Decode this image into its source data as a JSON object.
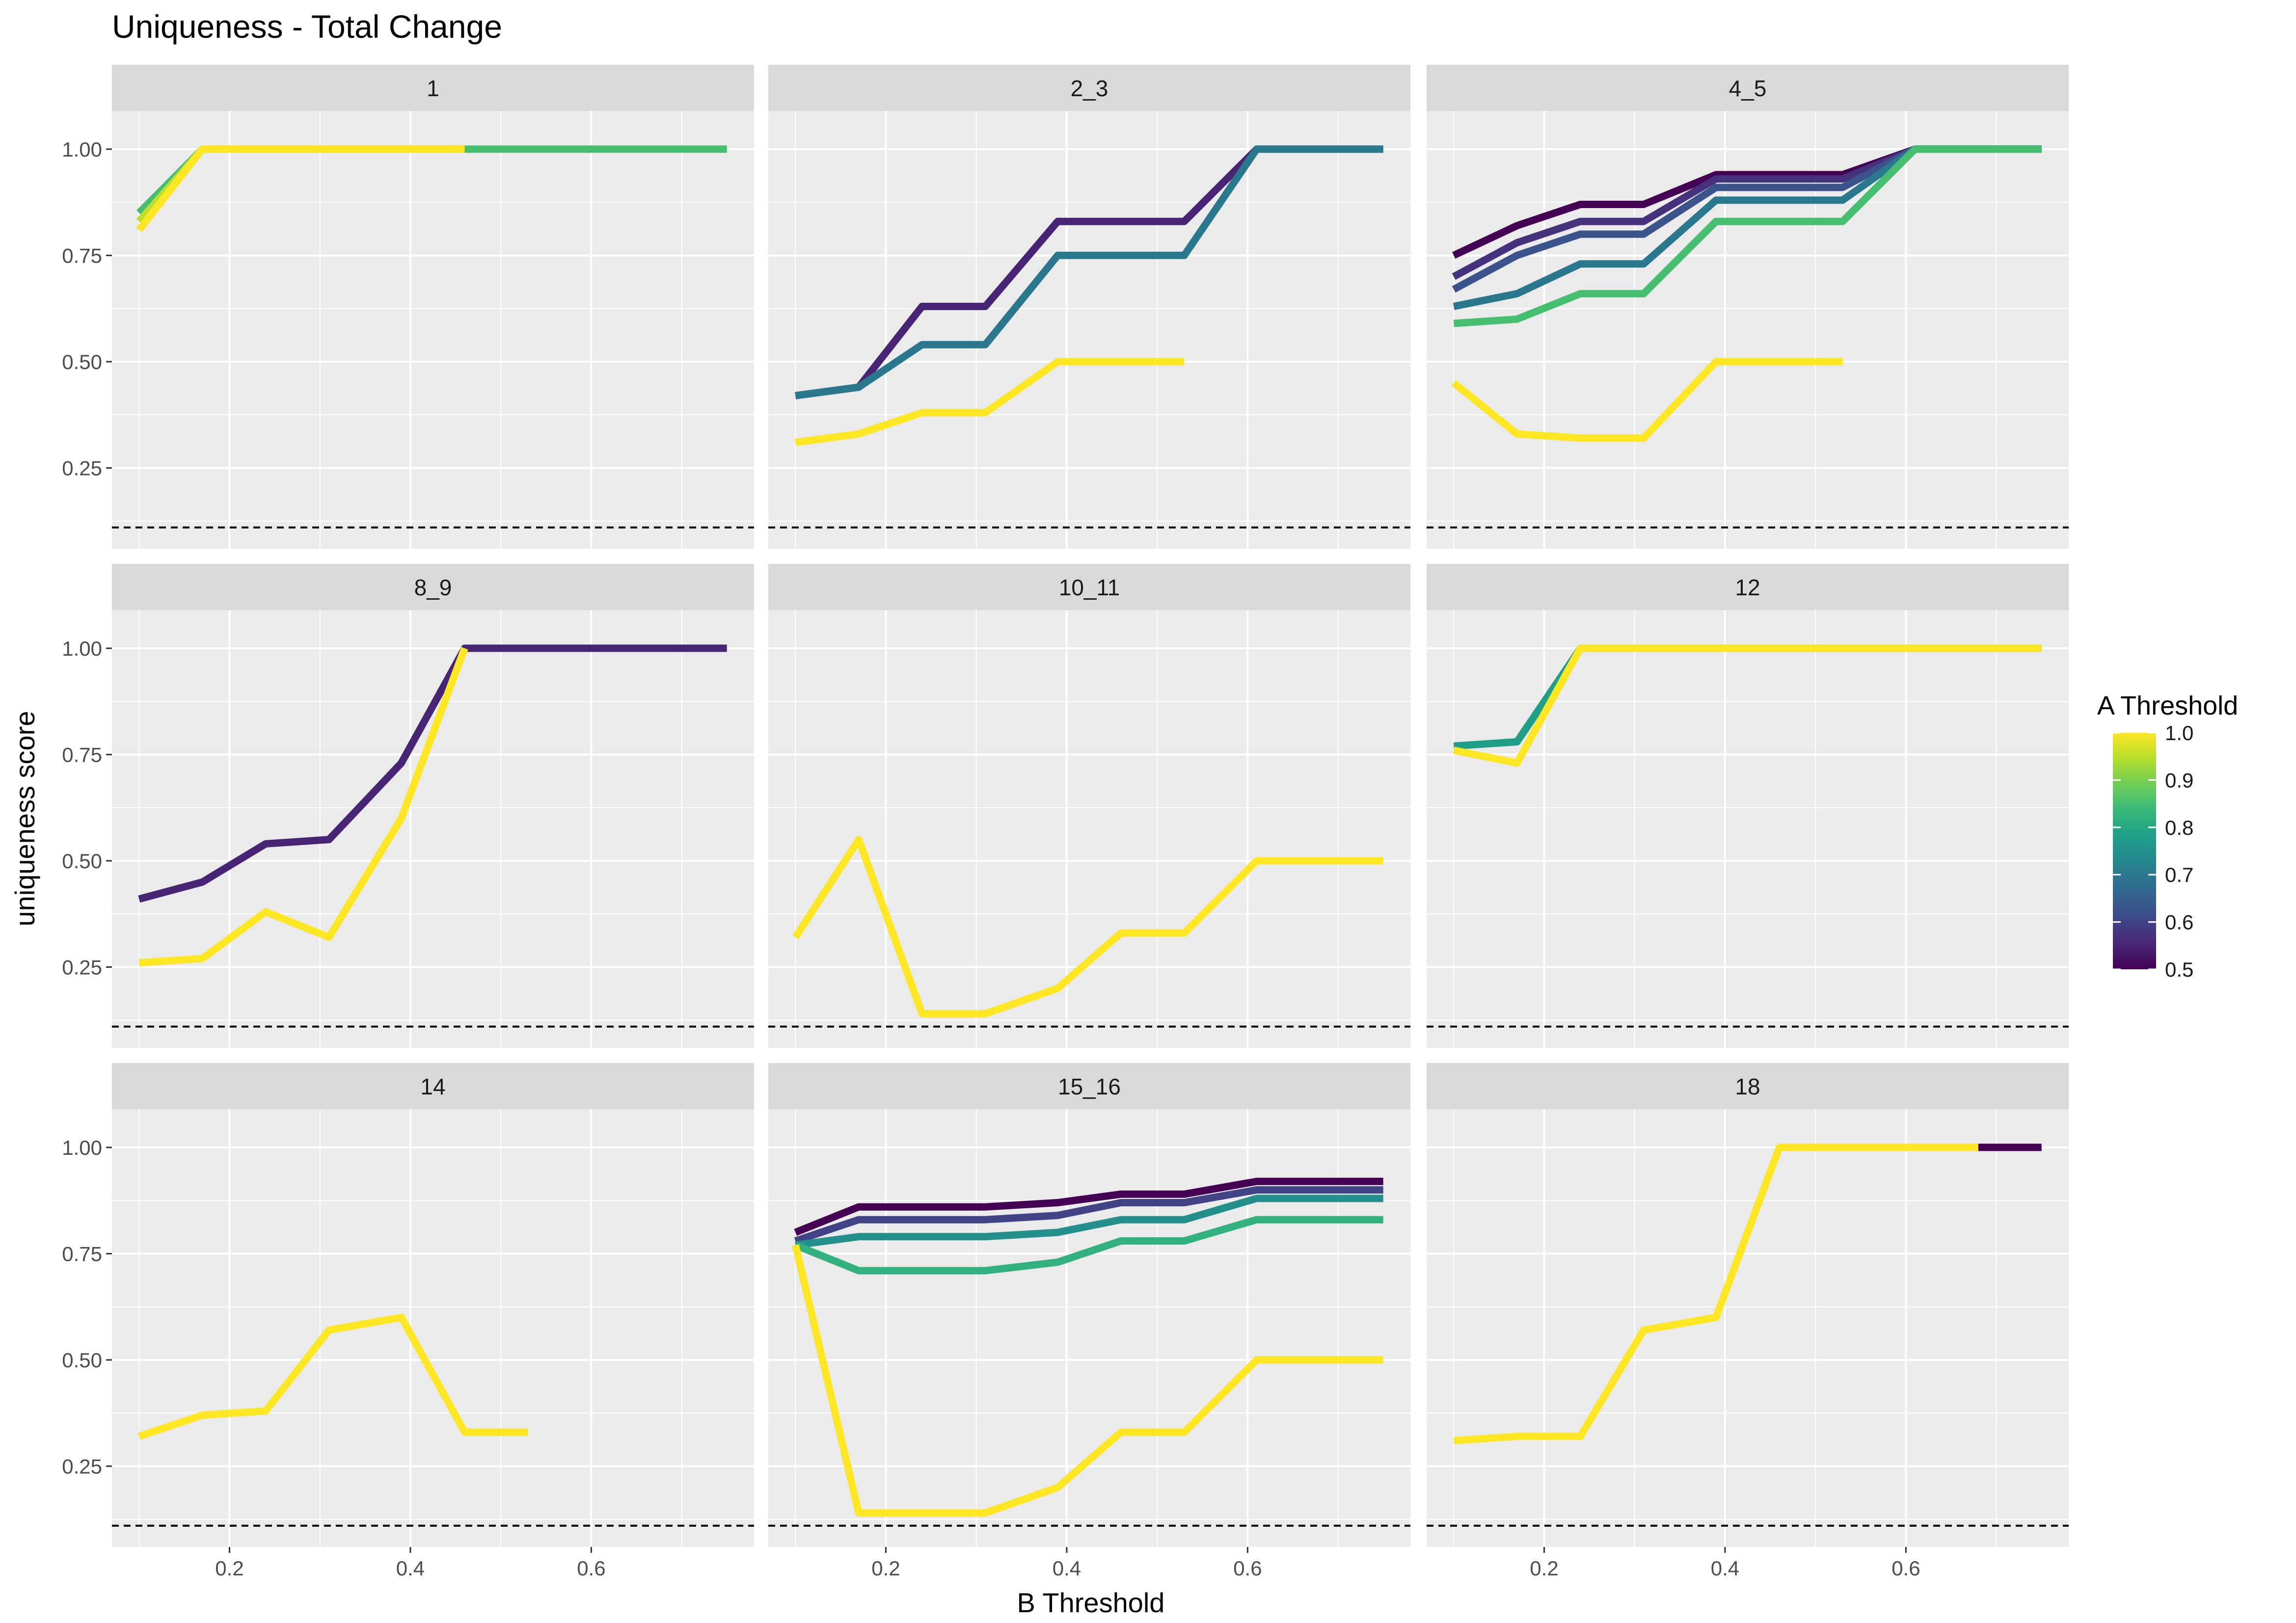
{
  "chart_data": {
    "type": "line",
    "title": "Uniqueness - Total Change",
    "xlabel": "B Threshold",
    "ylabel": "uniqueness score",
    "xlim": [
      0.07,
      0.78
    ],
    "ylim": [
      0.06,
      1.09
    ],
    "x_ticks": [
      0.2,
      0.4,
      0.6
    ],
    "x_tick_labels": [
      "0.2",
      "0.4",
      "0.6"
    ],
    "y_ticks": [
      0.25,
      0.5,
      0.75,
      1.0
    ],
    "y_tick_labels": [
      "0.25",
      "0.50",
      "0.75",
      "1.00"
    ],
    "reference_line_y": 0.11,
    "grid": true,
    "legend": {
      "title": "A Threshold",
      "placement": "right",
      "range": [
        0.5,
        1.0
      ],
      "tick_labels": [
        "1.0",
        "0.9",
        "0.8",
        "0.7",
        "0.6",
        "0.5"
      ],
      "tick_values": [
        1.0,
        0.9,
        0.8,
        0.7,
        0.6,
        0.5
      ]
    },
    "colors": {
      "panel_bg": "#EBEBEB",
      "strip_bg": "#D9D9D9",
      "grid": "#FFFFFF",
      "text": "#1A1A1A",
      "axis_text": "#4D4D4D",
      "ref_line": "#000000"
    },
    "panels": [
      {
        "label": "1",
        "series": [
          {
            "a": 0.85,
            "x": [
              0.1,
              0.17,
              0.24,
              0.31,
              0.39,
              0.46,
              0.53,
              0.61,
              0.68,
              0.75
            ],
            "y": [
              0.85,
              1.0,
              1.0,
              1.0,
              1.0,
              1.0,
              1.0,
              1.0,
              1.0,
              1.0
            ]
          },
          {
            "a": 0.95,
            "x": [
              0.1,
              0.17,
              0.24,
              0.31,
              0.39,
              0.46
            ],
            "y": [
              0.83,
              1.0,
              1.0,
              1.0,
              1.0,
              1.0
            ]
          },
          {
            "a": 1.0,
            "x": [
              0.1,
              0.17,
              0.24,
              0.31,
              0.39,
              0.46
            ],
            "y": [
              0.81,
              1.0,
              1.0,
              1.0,
              1.0,
              1.0
            ]
          }
        ]
      },
      {
        "label": "2_3",
        "series": [
          {
            "a": 0.55,
            "x": [
              0.1,
              0.17,
              0.24,
              0.31,
              0.39,
              0.46,
              0.53,
              0.61,
              0.68,
              0.75
            ],
            "y": [
              0.42,
              0.44,
              0.63,
              0.63,
              0.83,
              0.83,
              0.83,
              1.0,
              1.0,
              1.0
            ]
          },
          {
            "a": 0.7,
            "x": [
              0.1,
              0.17,
              0.24,
              0.31,
              0.39,
              0.46,
              0.53,
              0.61,
              0.68,
              0.75
            ],
            "y": [
              0.42,
              0.44,
              0.54,
              0.54,
              0.75,
              0.75,
              0.75,
              1.0,
              1.0,
              1.0
            ]
          },
          {
            "a": 1.0,
            "x": [
              0.1,
              0.17,
              0.24,
              0.31,
              0.39,
              0.46,
              0.53
            ],
            "y": [
              0.31,
              0.33,
              0.38,
              0.38,
              0.5,
              0.5,
              0.5
            ]
          }
        ]
      },
      {
        "label": "4_5",
        "series": [
          {
            "a": 0.5,
            "x": [
              0.1,
              0.17,
              0.24,
              0.31,
              0.39,
              0.46,
              0.53,
              0.61,
              0.68,
              0.75
            ],
            "y": [
              0.75,
              0.82,
              0.87,
              0.87,
              0.94,
              0.94,
              0.94,
              1.0,
              1.0,
              1.0
            ]
          },
          {
            "a": 0.57,
            "x": [
              0.1,
              0.17,
              0.24,
              0.31,
              0.39,
              0.46,
              0.53,
              0.61,
              0.68,
              0.75
            ],
            "y": [
              0.7,
              0.78,
              0.83,
              0.83,
              0.93,
              0.93,
              0.93,
              1.0,
              1.0,
              1.0
            ]
          },
          {
            "a": 0.63,
            "x": [
              0.1,
              0.17,
              0.24,
              0.31,
              0.39,
              0.46,
              0.53,
              0.61,
              0.68,
              0.75
            ],
            "y": [
              0.67,
              0.75,
              0.8,
              0.8,
              0.91,
              0.91,
              0.91,
              1.0,
              1.0,
              1.0
            ]
          },
          {
            "a": 0.7,
            "x": [
              0.1,
              0.17,
              0.24,
              0.31,
              0.39,
              0.46,
              0.53,
              0.61,
              0.68,
              0.75
            ],
            "y": [
              0.63,
              0.66,
              0.73,
              0.73,
              0.88,
              0.88,
              0.88,
              1.0,
              1.0,
              1.0
            ]
          },
          {
            "a": 0.85,
            "x": [
              0.1,
              0.17,
              0.24,
              0.31,
              0.39,
              0.46,
              0.53,
              0.61,
              0.68,
              0.75
            ],
            "y": [
              0.59,
              0.6,
              0.66,
              0.66,
              0.83,
              0.83,
              0.83,
              1.0,
              1.0,
              1.0
            ]
          },
          {
            "a": 1.0,
            "x": [
              0.1,
              0.17,
              0.24,
              0.31,
              0.39,
              0.46,
              0.53
            ],
            "y": [
              0.45,
              0.33,
              0.32,
              0.32,
              0.5,
              0.5,
              0.5
            ]
          }
        ]
      },
      {
        "label": "8_9",
        "series": [
          {
            "a": 0.55,
            "x": [
              0.1,
              0.17,
              0.24,
              0.31,
              0.39,
              0.46,
              0.53,
              0.61,
              0.68,
              0.75
            ],
            "y": [
              0.41,
              0.45,
              0.54,
              0.55,
              0.73,
              1.0,
              1.0,
              1.0,
              1.0,
              1.0
            ]
          },
          {
            "a": 1.0,
            "x": [
              0.1,
              0.17,
              0.24,
              0.31,
              0.39,
              0.46
            ],
            "y": [
              0.26,
              0.27,
              0.38,
              0.32,
              0.6,
              1.0
            ]
          }
        ]
      },
      {
        "label": "10_11",
        "series": [
          {
            "a": 1.0,
            "x": [
              0.1,
              0.17,
              0.24,
              0.31,
              0.39,
              0.46,
              0.53,
              0.61,
              0.68,
              0.75
            ],
            "y": [
              0.32,
              0.55,
              0.14,
              0.14,
              0.2,
              0.33,
              0.33,
              0.5,
              0.5,
              0.5
            ]
          }
        ]
      },
      {
        "label": "12",
        "series": [
          {
            "a": 0.78,
            "x": [
              0.1,
              0.17,
              0.24,
              0.31,
              0.39,
              0.46,
              0.53,
              0.61,
              0.68,
              0.75
            ],
            "y": [
              0.77,
              0.78,
              1.0,
              1.0,
              1.0,
              1.0,
              1.0,
              1.0,
              1.0,
              1.0
            ]
          },
          {
            "a": 1.0,
            "x": [
              0.1,
              0.17,
              0.24,
              0.31,
              0.39,
              0.46,
              0.53,
              0.61,
              0.68,
              0.75
            ],
            "y": [
              0.76,
              0.73,
              1.0,
              1.0,
              1.0,
              1.0,
              1.0,
              1.0,
              1.0,
              1.0
            ]
          }
        ]
      },
      {
        "label": "14",
        "series": [
          {
            "a": 1.0,
            "x": [
              0.1,
              0.17,
              0.24,
              0.31,
              0.39,
              0.46,
              0.53
            ],
            "y": [
              0.32,
              0.37,
              0.38,
              0.57,
              0.6,
              0.33,
              0.33
            ]
          }
        ]
      },
      {
        "label": "15_16",
        "series": [
          {
            "a": 0.5,
            "x": [
              0.1,
              0.17,
              0.24,
              0.31,
              0.39,
              0.46,
              0.53,
              0.61,
              0.68,
              0.75
            ],
            "y": [
              0.8,
              0.86,
              0.86,
              0.86,
              0.87,
              0.89,
              0.89,
              0.92,
              0.92,
              0.92
            ]
          },
          {
            "a": 0.6,
            "x": [
              0.1,
              0.17,
              0.24,
              0.31,
              0.39,
              0.46,
              0.53,
              0.61,
              0.68,
              0.75
            ],
            "y": [
              0.78,
              0.83,
              0.83,
              0.83,
              0.84,
              0.87,
              0.87,
              0.9,
              0.9,
              0.9
            ]
          },
          {
            "a": 0.75,
            "x": [
              0.1,
              0.17,
              0.24,
              0.31,
              0.39,
              0.46,
              0.53,
              0.61,
              0.68,
              0.75
            ],
            "y": [
              0.77,
              0.79,
              0.79,
              0.79,
              0.8,
              0.83,
              0.83,
              0.88,
              0.88,
              0.88
            ]
          },
          {
            "a": 0.82,
            "x": [
              0.1,
              0.17,
              0.24,
              0.31,
              0.39,
              0.46,
              0.53,
              0.61,
              0.68,
              0.75
            ],
            "y": [
              0.77,
              0.71,
              0.71,
              0.71,
              0.73,
              0.78,
              0.78,
              0.83,
              0.83,
              0.83
            ]
          },
          {
            "a": 1.0,
            "x": [
              0.1,
              0.17,
              0.24,
              0.31,
              0.39,
              0.46,
              0.53,
              0.61,
              0.68,
              0.75
            ],
            "y": [
              0.77,
              0.14,
              0.14,
              0.14,
              0.2,
              0.33,
              0.33,
              0.5,
              0.5,
              0.5
            ]
          }
        ]
      },
      {
        "label": "18",
        "series": [
          {
            "a": 0.5,
            "x": [
              0.68,
              0.75
            ],
            "y": [
              1.0,
              1.0
            ]
          },
          {
            "a": 1.0,
            "x": [
              0.1,
              0.17,
              0.24,
              0.31,
              0.39,
              0.46,
              0.53,
              0.61,
              0.68
            ],
            "y": [
              0.31,
              0.32,
              0.32,
              0.57,
              0.6,
              1.0,
              1.0,
              1.0,
              1.0
            ]
          }
        ]
      }
    ]
  }
}
